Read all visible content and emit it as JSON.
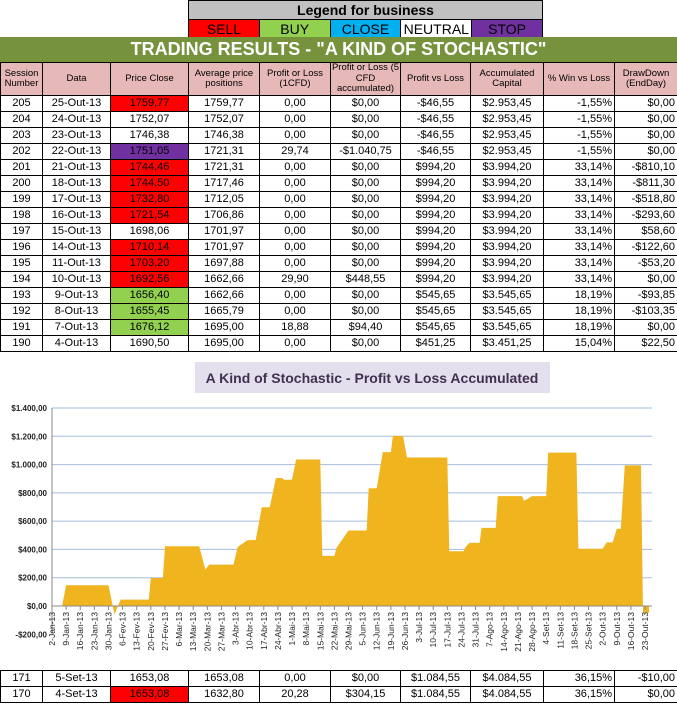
{
  "legend": {
    "title": "Legend for business",
    "items": [
      {
        "label": "SELL",
        "color": "#ff0000",
        "text": "#000"
      },
      {
        "label": "BUY",
        "color": "#92d050",
        "text": "#000"
      },
      {
        "label": "CLOSE",
        "color": "#00b0f0",
        "text": "#000"
      },
      {
        "label": "NEUTRAL",
        "color": "#ffffff",
        "text": "#000"
      },
      {
        "label": "STOP LOSS",
        "color": "#7030a0",
        "text": "#000"
      }
    ]
  },
  "title": "TRADING RESULTS - \"A KIND OF STOCHASTIC\"",
  "columns": [
    "Session Number",
    "Data",
    "Price Close",
    "Average price positions",
    "Profit or Loss (1CFD)",
    "Profit or Loss (5 CFD accumulated)",
    "Profit vs Loss",
    "Accumulated Capital",
    "% Win vs Loss",
    "DrawDown (EndDay)"
  ],
  "rows": [
    [
      "205",
      "25-Out-13",
      "1759,77",
      "1759,77",
      "0,00",
      "$0,00",
      "-$46,55",
      "$2.953,45",
      "-1,55%",
      "$0,00",
      "sell"
    ],
    [
      "204",
      "24-Out-13",
      "1752,07",
      "1752,07",
      "0,00",
      "$0,00",
      "-$46,55",
      "$2.953,45",
      "-1,55%",
      "$0,00",
      ""
    ],
    [
      "203",
      "23-Out-13",
      "1746,38",
      "1746,38",
      "0,00",
      "$0,00",
      "-$46,55",
      "$2.953,45",
      "-1,55%",
      "$0,00",
      ""
    ],
    [
      "202",
      "22-Out-13",
      "1751,05",
      "1721,31",
      "29,74",
      "-$1.040,75",
      "-$46,55",
      "$2.953,45",
      "-1,55%",
      "$0,00",
      "stop"
    ],
    [
      "201",
      "21-Out-13",
      "1744,46",
      "1721,31",
      "0,00",
      "$0,00",
      "$994,20",
      "$3.994,20",
      "33,14%",
      "-$810,10",
      "sell"
    ],
    [
      "200",
      "18-Out-13",
      "1744,50",
      "1717,46",
      "0,00",
      "$0,00",
      "$994,20",
      "$3.994,20",
      "33,14%",
      "-$811,30",
      "sell"
    ],
    [
      "199",
      "17-Out-13",
      "1732,80",
      "1712,05",
      "0,00",
      "$0,00",
      "$994,20",
      "$3.994,20",
      "33,14%",
      "-$518,80",
      "sell"
    ],
    [
      "198",
      "16-Out-13",
      "1721,54",
      "1706,86",
      "0,00",
      "$0,00",
      "$994,20",
      "$3.994,20",
      "33,14%",
      "-$293,60",
      "sell"
    ],
    [
      "197",
      "15-Out-13",
      "1698,06",
      "1701,97",
      "0,00",
      "$0,00",
      "$994,20",
      "$3.994,20",
      "33,14%",
      "$58,60",
      ""
    ],
    [
      "196",
      "14-Out-13",
      "1710,14",
      "1701,97",
      "0,00",
      "$0,00",
      "$994,20",
      "$3.994,20",
      "33,14%",
      "-$122,60",
      "sell"
    ],
    [
      "195",
      "11-Out-13",
      "1703,20",
      "1697,88",
      "0,00",
      "$0,00",
      "$994,20",
      "$3.994,20",
      "33,14%",
      "-$53,20",
      "sell"
    ],
    [
      "194",
      "10-Out-13",
      "1692,56",
      "1662,66",
      "29,90",
      "$448,55",
      "$994,20",
      "$3.994,20",
      "33,14%",
      "$0,00",
      "sell"
    ],
    [
      "193",
      "9-Out-13",
      "1656,40",
      "1662,66",
      "0,00",
      "$0,00",
      "$545,65",
      "$3.545,65",
      "18,19%",
      "-$93,85",
      "buy"
    ],
    [
      "192",
      "8-Out-13",
      "1655,45",
      "1665,79",
      "0,00",
      "$0,00",
      "$545,65",
      "$3.545,65",
      "18,19%",
      "-$103,35",
      "buy"
    ],
    [
      "191",
      "7-Out-13",
      "1676,12",
      "1695,00",
      "18,88",
      "$94,40",
      "$545,65",
      "$3.545,65",
      "18,19%",
      "$0,00",
      "buy"
    ],
    [
      "190",
      "4-Out-13",
      "1690,50",
      "1695,00",
      "0,00",
      "$0,00",
      "$451,25",
      "$3.451,25",
      "15,04%",
      "$22,50",
      ""
    ]
  ],
  "bottom_rows": [
    [
      "171",
      "5-Set-13",
      "1653,08",
      "1653,08",
      "0,00",
      "$0,00",
      "$1.084,55",
      "$4.084,55",
      "36,15%",
      "-$10,00",
      ""
    ],
    [
      "170",
      "4-Set-13",
      "1653,08",
      "1632,80",
      "20,28",
      "$304,15",
      "$1.084,55",
      "$4.084,55",
      "36,15%",
      "$0,00",
      "sell"
    ]
  ],
  "chart_data": {
    "type": "area",
    "title": "A Kind of Stochastic - Profit vs Loss Accumulated",
    "ylim": [
      -200,
      1400
    ],
    "yticks": [
      -200,
      0,
      200,
      400,
      600,
      800,
      1000,
      1200,
      1400
    ],
    "ytick_labels": [
      "-$200,00",
      "$0,00",
      "$200,00",
      "$400,00",
      "$600,00",
      "$800,00",
      "$1.000,00",
      "$1.200,00",
      "$1.400,00"
    ],
    "grid": true,
    "color": "#f0b41e",
    "xtick_labels": [
      "2-Jan-13",
      "9-Jan-13",
      "16-Jan-13",
      "23-Jan-13",
      "30-Jan-13",
      "6-Fev-13",
      "13-Fev-13",
      "20-Fev-13",
      "27-Fev-13",
      "6-Mar-13",
      "13-Mar-13",
      "20-Mar-13",
      "27-Mar-13",
      "3-Abr-13",
      "10-Abr-13",
      "17-Abr-13",
      "24-Abr-13",
      "1-Mai-13",
      "8-Mai-13",
      "15-Mai-13",
      "22-Mai-13",
      "29-Mai-13",
      "5-Jun-13",
      "12-Jun-13",
      "19-Jun-13",
      "26-Jun-13",
      "3-Jul-13",
      "10-Jul-13",
      "17-Jul-13",
      "24-Jul-13",
      "31-Jul-13",
      "7-Ago-13",
      "14-Ago-13",
      "21-Ago-13",
      "28-Ago-13",
      "4-Set-13",
      "11-Set-13",
      "18-Set-13",
      "25-Set-13",
      "2-Out-13",
      "9-Out-13",
      "16-Out-13",
      "23-Out-13"
    ],
    "points": [
      [
        "2013-01-02",
        0
      ],
      [
        "2013-01-07",
        0
      ],
      [
        "2013-01-09",
        147
      ],
      [
        "2013-01-30",
        147
      ],
      [
        "2013-02-02",
        -60
      ],
      [
        "2013-02-05",
        45
      ],
      [
        "2013-02-19",
        45
      ],
      [
        "2013-02-20",
        198
      ],
      [
        "2013-02-26",
        198
      ],
      [
        "2013-02-27",
        423
      ],
      [
        "2013-03-16",
        423
      ],
      [
        "2013-03-19",
        259
      ],
      [
        "2013-03-21",
        293
      ],
      [
        "2013-04-02",
        293
      ],
      [
        "2013-04-04",
        417
      ],
      [
        "2013-04-09",
        466
      ],
      [
        "2013-04-13",
        466
      ],
      [
        "2013-04-16",
        698
      ],
      [
        "2013-04-20",
        698
      ],
      [
        "2013-04-23",
        905
      ],
      [
        "2013-04-26",
        905
      ],
      [
        "2013-04-27",
        892
      ],
      [
        "2013-05-01",
        892
      ],
      [
        "2013-05-03",
        1036
      ],
      [
        "2013-05-15",
        1036
      ],
      [
        "2013-05-16",
        354
      ],
      [
        "2013-05-22",
        354
      ],
      [
        "2013-05-23",
        410
      ],
      [
        "2013-05-29",
        534
      ],
      [
        "2013-06-07",
        534
      ],
      [
        "2013-06-08",
        833
      ],
      [
        "2013-06-12",
        833
      ],
      [
        "2013-06-13",
        919
      ],
      [
        "2013-06-15",
        1088
      ],
      [
        "2013-06-19",
        1088
      ],
      [
        "2013-06-20",
        1203
      ],
      [
        "2013-06-25",
        1203
      ],
      [
        "2013-06-27",
        1050
      ],
      [
        "2013-07-17",
        1050
      ],
      [
        "2013-07-18",
        387
      ],
      [
        "2013-07-25",
        387
      ],
      [
        "2013-07-26",
        417
      ],
      [
        "2013-07-28",
        446
      ],
      [
        "2013-08-02",
        446
      ],
      [
        "2013-08-03",
        552
      ],
      [
        "2013-08-10",
        552
      ],
      [
        "2013-08-11",
        777
      ],
      [
        "2013-08-23",
        777
      ],
      [
        "2013-08-24",
        743
      ],
      [
        "2013-08-28",
        777
      ],
      [
        "2013-09-04",
        777
      ],
      [
        "2013-09-05",
        1084.55
      ],
      [
        "2013-09-19",
        1084.55
      ],
      [
        "2013-09-20",
        405
      ],
      [
        "2013-10-02",
        405
      ],
      [
        "2013-10-04",
        450
      ],
      [
        "2013-10-07",
        450
      ],
      [
        "2013-10-09",
        545.65
      ],
      [
        "2013-10-11",
        545.65
      ],
      [
        "2013-10-13",
        994.2
      ],
      [
        "2013-10-21",
        994.2
      ],
      [
        "2013-10-22",
        -46.55
      ],
      [
        "2013-10-25",
        -46.55
      ]
    ]
  }
}
